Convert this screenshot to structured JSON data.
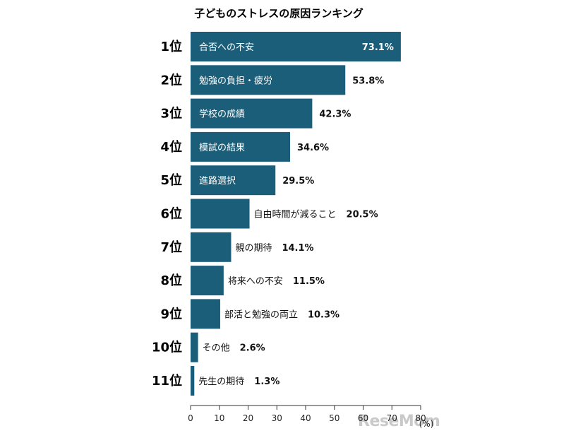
{
  "chart_data": {
    "type": "bar",
    "orientation": "horizontal",
    "title": "子どものストレスの原因ランキング",
    "unit": "(%)",
    "ranks": [
      "1位",
      "2位",
      "3位",
      "4位",
      "5位",
      "6位",
      "7位",
      "8位",
      "9位",
      "10位",
      "11位"
    ],
    "categories": [
      "合否への不安",
      "勉強の負担・疲労",
      "学校の成績",
      "模試の結果",
      "進路選択",
      "自由時間が減ること",
      "親の期待",
      "将来への不安",
      "部活と勉強の両立",
      "その他",
      "先生の期待"
    ],
    "values": [
      73.1,
      53.8,
      42.3,
      34.6,
      29.5,
      20.5,
      14.1,
      11.5,
      10.3,
      2.6,
      1.3
    ],
    "value_labels": [
      "73.1%",
      "53.8%",
      "42.3%",
      "34.6%",
      "29.5%",
      "20.5%",
      "14.1%",
      "11.5%",
      "10.3%",
      "2.6%",
      "1.3%"
    ],
    "xlim": [
      0,
      80
    ],
    "xticks": [
      "0",
      "10",
      "20",
      "30",
      "40",
      "50",
      "60",
      "70",
      "80"
    ],
    "bar_color": "#1b5e7a",
    "grid": false
  },
  "watermark": "ReseMom"
}
